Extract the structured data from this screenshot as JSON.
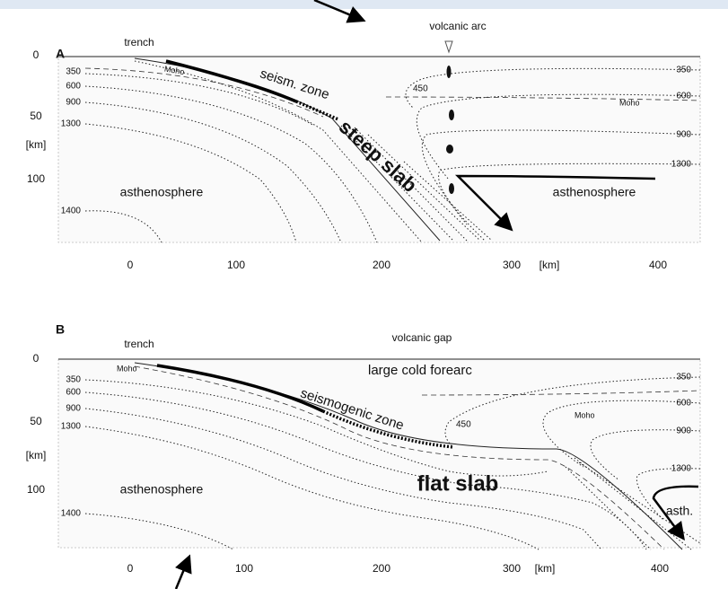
{
  "panels": [
    {
      "label": "A",
      "trench": "trench",
      "arc": "volcanic arc",
      "depth_ticks": [
        "0",
        "50",
        "[km]",
        "100"
      ],
      "isotherms_left": [
        "350",
        "600",
        "900",
        "1300",
        "1400"
      ],
      "isotherms_right": [
        "350",
        "600",
        "900",
        "1300"
      ],
      "moho": [
        "Moho",
        "Moho"
      ],
      "isotherm_mid": "450",
      "zone": "seism. zone",
      "slab": "steep slab",
      "asthenosphere": [
        "asthenosphere",
        "asthenosphere"
      ],
      "x_ticks": [
        "0",
        "100",
        "200",
        "300",
        "[km]",
        "400"
      ]
    },
    {
      "label": "B",
      "trench": "trench",
      "arc": "volcanic gap",
      "depth_ticks": [
        "0",
        "50",
        "[km]",
        "100"
      ],
      "isotherms_left": [
        "350",
        "600",
        "900",
        "1300",
        "1400"
      ],
      "isotherms_right": [
        "350",
        "600",
        "900",
        "1300"
      ],
      "moho": [
        "Moho",
        "Moho"
      ],
      "isotherm_mid": "450",
      "zone": "seismogenic zone",
      "forearc": "large cold forearc",
      "slab": "flat slab",
      "asthenosphere": [
        "asthenosphere",
        "asth."
      ],
      "x_ticks": [
        "0",
        "100",
        "200",
        "300",
        "[km]",
        "400"
      ]
    }
  ]
}
